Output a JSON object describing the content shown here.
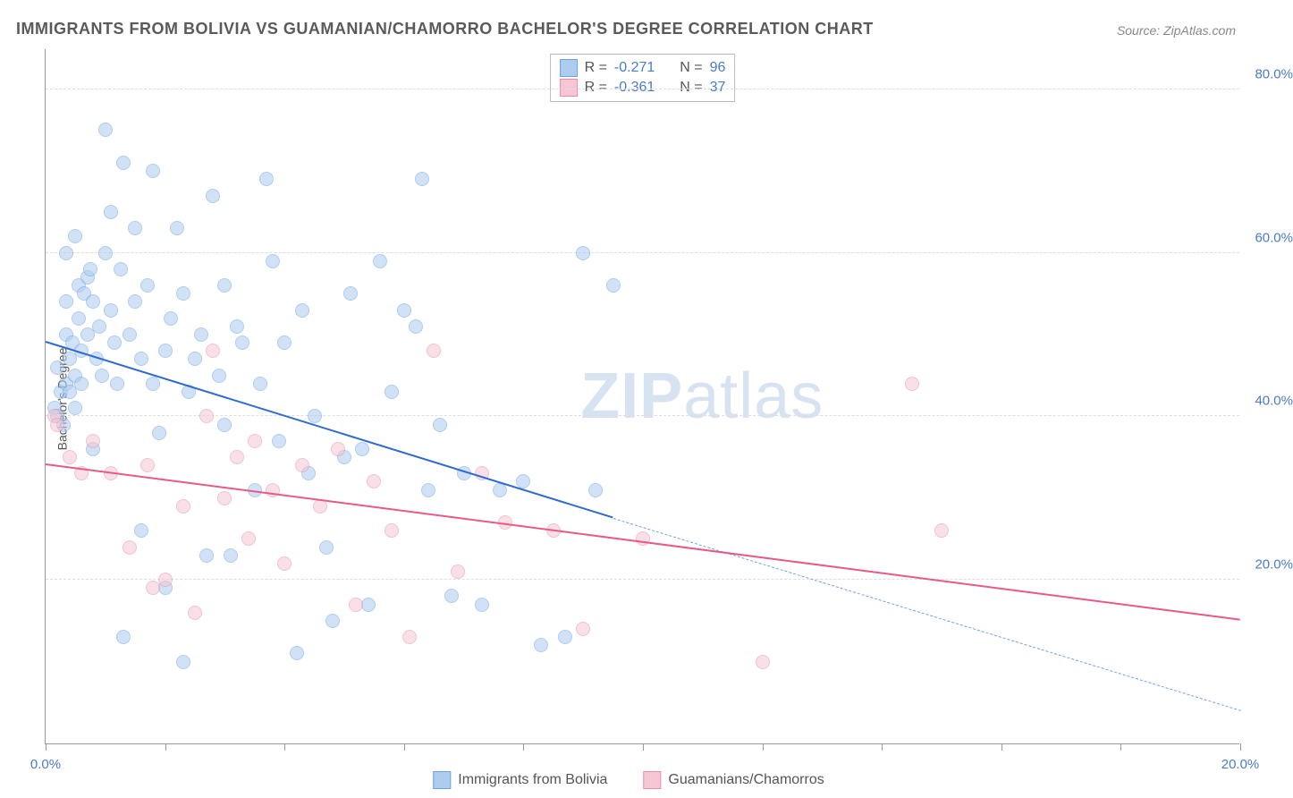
{
  "title": "IMMIGRANTS FROM BOLIVIA VS GUAMANIAN/CHAMORRO BACHELOR'S DEGREE CORRELATION CHART",
  "source": "Source: ZipAtlas.com",
  "ylabel": "Bachelor's Degree",
  "watermark_bold": "ZIP",
  "watermark_rest": "atlas",
  "chart": {
    "type": "scatter",
    "xlim": [
      0,
      20
    ],
    "ylim": [
      0,
      85
    ],
    "xtick_values": [
      0,
      2,
      4,
      6,
      8,
      10,
      12,
      14,
      16,
      18,
      20
    ],
    "xtick_labels": {
      "0": "0.0%",
      "20": "20.0%"
    },
    "ytick_values": [
      20,
      40,
      60,
      80
    ],
    "ytick_labels": {
      "20": "20.0%",
      "40": "40.0%",
      "60": "60.0%",
      "80": "80.0%"
    },
    "grid_color": "#dddddd",
    "background_color": "#ffffff",
    "marker_radius": 8,
    "marker_opacity": 0.55,
    "series": [
      {
        "name": "Immigrants from Bolivia",
        "fill_color": "#aeccf0",
        "stroke_color": "#6fa3e0",
        "line_color": "#2c6bd1",
        "R": "-0.271",
        "N": "96",
        "trend": {
          "x1": 0,
          "y1": 49,
          "x2": 9.5,
          "y2": 27.5,
          "ext_x2": 20,
          "ext_y2": 4
        },
        "points": [
          [
            0.15,
            41
          ],
          [
            0.2,
            40
          ],
          [
            0.2,
            46
          ],
          [
            0.25,
            43
          ],
          [
            0.3,
            39
          ],
          [
            0.35,
            44
          ],
          [
            0.35,
            50
          ],
          [
            0.35,
            54
          ],
          [
            0.35,
            60
          ],
          [
            0.4,
            47
          ],
          [
            0.4,
            43
          ],
          [
            0.45,
            49
          ],
          [
            0.5,
            41
          ],
          [
            0.5,
            45
          ],
          [
            0.5,
            62
          ],
          [
            0.55,
            56
          ],
          [
            0.55,
            52
          ],
          [
            0.6,
            48
          ],
          [
            0.6,
            44
          ],
          [
            0.65,
            55
          ],
          [
            0.7,
            50
          ],
          [
            0.7,
            57
          ],
          [
            0.75,
            58
          ],
          [
            0.8,
            54
          ],
          [
            0.8,
            36
          ],
          [
            0.85,
            47
          ],
          [
            0.9,
            51
          ],
          [
            0.95,
            45
          ],
          [
            1.0,
            75
          ],
          [
            1.0,
            60
          ],
          [
            1.1,
            53
          ],
          [
            1.1,
            65
          ],
          [
            1.15,
            49
          ],
          [
            1.2,
            44
          ],
          [
            1.25,
            58
          ],
          [
            1.3,
            71
          ],
          [
            1.3,
            13
          ],
          [
            1.4,
            50
          ],
          [
            1.5,
            54
          ],
          [
            1.5,
            63
          ],
          [
            1.6,
            26
          ],
          [
            1.6,
            47
          ],
          [
            1.7,
            56
          ],
          [
            1.8,
            44
          ],
          [
            1.8,
            70
          ],
          [
            1.9,
            38
          ],
          [
            2.0,
            48
          ],
          [
            2.0,
            19
          ],
          [
            2.1,
            52
          ],
          [
            2.2,
            63
          ],
          [
            2.3,
            55
          ],
          [
            2.3,
            10
          ],
          [
            2.4,
            43
          ],
          [
            2.5,
            47
          ],
          [
            2.6,
            50
          ],
          [
            2.7,
            23
          ],
          [
            2.8,
            67
          ],
          [
            2.9,
            45
          ],
          [
            3.0,
            39
          ],
          [
            3.0,
            56
          ],
          [
            3.1,
            23
          ],
          [
            3.2,
            51
          ],
          [
            3.3,
            49
          ],
          [
            3.5,
            31
          ],
          [
            3.6,
            44
          ],
          [
            3.7,
            69
          ],
          [
            3.8,
            59
          ],
          [
            3.9,
            37
          ],
          [
            4.0,
            49
          ],
          [
            4.2,
            11
          ],
          [
            4.3,
            53
          ],
          [
            4.4,
            33
          ],
          [
            4.5,
            40
          ],
          [
            4.7,
            24
          ],
          [
            4.8,
            15
          ],
          [
            5.0,
            35
          ],
          [
            5.1,
            55
          ],
          [
            5.3,
            36
          ],
          [
            5.4,
            17
          ],
          [
            5.6,
            59
          ],
          [
            5.8,
            43
          ],
          [
            6.0,
            53
          ],
          [
            6.2,
            51
          ],
          [
            6.3,
            69
          ],
          [
            6.4,
            31
          ],
          [
            6.6,
            39
          ],
          [
            6.8,
            18
          ],
          [
            7.0,
            33
          ],
          [
            7.3,
            17
          ],
          [
            7.6,
            31
          ],
          [
            8.0,
            32
          ],
          [
            8.3,
            12
          ],
          [
            8.7,
            13
          ],
          [
            9.0,
            60
          ],
          [
            9.2,
            31
          ],
          [
            9.5,
            56
          ]
        ]
      },
      {
        "name": "Guamanians/Chamorros",
        "fill_color": "#f5c6d3",
        "stroke_color": "#e88fa8",
        "line_color": "#e85a85",
        "R": "-0.361",
        "N": "37",
        "trend": {
          "x1": 0,
          "y1": 34,
          "x2": 20,
          "y2": 15
        },
        "points": [
          [
            0.15,
            40
          ],
          [
            0.2,
            39
          ],
          [
            0.4,
            35
          ],
          [
            0.6,
            33
          ],
          [
            0.8,
            37
          ],
          [
            1.1,
            33
          ],
          [
            1.4,
            24
          ],
          [
            1.7,
            34
          ],
          [
            1.8,
            19
          ],
          [
            2.0,
            20
          ],
          [
            2.3,
            29
          ],
          [
            2.5,
            16
          ],
          [
            2.7,
            40
          ],
          [
            2.8,
            48
          ],
          [
            3.0,
            30
          ],
          [
            3.2,
            35
          ],
          [
            3.4,
            25
          ],
          [
            3.5,
            37
          ],
          [
            3.8,
            31
          ],
          [
            4.0,
            22
          ],
          [
            4.3,
            34
          ],
          [
            4.6,
            29
          ],
          [
            4.9,
            36
          ],
          [
            5.2,
            17
          ],
          [
            5.5,
            32
          ],
          [
            5.8,
            26
          ],
          [
            6.1,
            13
          ],
          [
            6.5,
            48
          ],
          [
            6.9,
            21
          ],
          [
            7.3,
            33
          ],
          [
            7.7,
            27
          ],
          [
            8.5,
            26
          ],
          [
            9.0,
            14
          ],
          [
            10.0,
            25
          ],
          [
            12.0,
            10
          ],
          [
            14.5,
            44
          ],
          [
            15.0,
            26
          ]
        ]
      }
    ]
  },
  "legend_stats": {
    "r_label": "R =",
    "n_label": "N ="
  }
}
